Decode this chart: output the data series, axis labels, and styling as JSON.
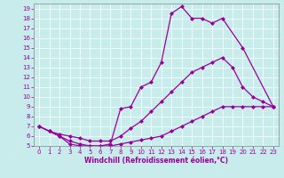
{
  "xlabel": "Windchill (Refroidissement éolien,°C)",
  "background_color": "#c8ecec",
  "line_color": "#990099",
  "xlim": [
    -0.5,
    23.5
  ],
  "ylim": [
    5,
    19.5
  ],
  "xticks": [
    0,
    1,
    2,
    3,
    4,
    5,
    6,
    7,
    8,
    9,
    10,
    11,
    12,
    13,
    14,
    15,
    16,
    17,
    18,
    19,
    20,
    21,
    22,
    23
  ],
  "yticks": [
    5,
    6,
    7,
    8,
    9,
    10,
    11,
    12,
    13,
    14,
    15,
    16,
    17,
    18,
    19
  ],
  "line1_x": [
    0,
    1,
    2,
    3,
    4,
    5,
    6,
    7,
    8,
    9,
    10,
    11,
    12,
    13,
    14,
    15,
    16,
    17,
    18,
    20,
    23
  ],
  "line1_y": [
    7.0,
    6.5,
    6.0,
    5.2,
    5.0,
    5.0,
    5.0,
    5.2,
    8.8,
    9.0,
    11.0,
    11.5,
    13.5,
    18.5,
    19.2,
    18.0,
    18.0,
    17.5,
    18.0,
    15.0,
    9.0
  ],
  "line2_x": [
    0,
    1,
    2,
    3,
    4,
    5,
    6,
    7,
    8,
    9,
    10,
    11,
    12,
    13,
    14,
    15,
    16,
    17,
    18,
    19,
    20,
    21,
    22,
    23
  ],
  "line2_y": [
    7.0,
    6.5,
    6.2,
    6.0,
    5.8,
    5.5,
    5.5,
    5.5,
    6.0,
    6.8,
    7.5,
    8.5,
    9.5,
    10.5,
    11.5,
    12.5,
    13.0,
    13.5,
    14.0,
    13.0,
    11.0,
    10.0,
    9.5,
    9.0
  ],
  "line3_x": [
    0,
    1,
    2,
    3,
    4,
    5,
    6,
    7,
    8,
    9,
    10,
    11,
    12,
    13,
    14,
    15,
    16,
    17,
    18,
    19,
    20,
    21,
    22,
    23
  ],
  "line3_y": [
    7.0,
    6.5,
    6.0,
    5.5,
    5.2,
    5.0,
    5.0,
    5.0,
    5.2,
    5.4,
    5.6,
    5.8,
    6.0,
    6.5,
    7.0,
    7.5,
    8.0,
    8.5,
    9.0,
    9.0,
    9.0,
    9.0,
    9.0,
    9.0
  ]
}
